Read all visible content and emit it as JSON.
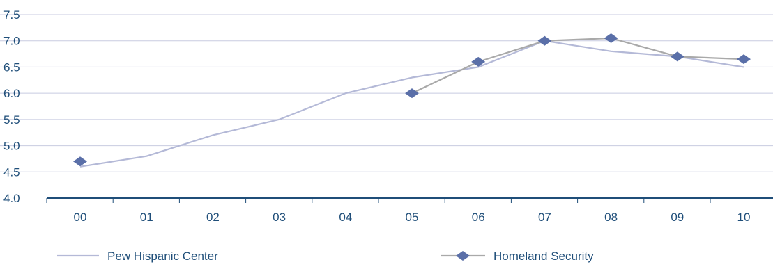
{
  "chart_data": {
    "type": "line",
    "categories": [
      "00",
      "01",
      "02",
      "03",
      "04",
      "05",
      "06",
      "07",
      "08",
      "09",
      "10"
    ],
    "series": [
      {
        "name": "Pew Hispanic Center",
        "values": [
          4.6,
          4.8,
          5.2,
          5.5,
          6.0,
          6.3,
          6.5,
          7.0,
          6.8,
          6.7,
          6.5
        ],
        "color": "#b4b9d7",
        "marker": "none"
      },
      {
        "name": "Homeland Security",
        "values": [
          4.7,
          null,
          null,
          null,
          null,
          6.0,
          6.6,
          7.0,
          7.05,
          6.7,
          6.65
        ],
        "color": "#a9a9a9",
        "marker_color": "#5a6fa8",
        "marker": "diamond"
      }
    ],
    "yticks": [
      "4.0",
      "4.5",
      "5.0",
      "5.5",
      "6.0",
      "6.5",
      "7.0",
      "7.5"
    ],
    "ylim": [
      4.0,
      7.5
    ],
    "grid": true,
    "legend_position": "bottom",
    "title": "",
    "xlabel": "",
    "ylabel": ""
  },
  "colors": {
    "axis": "#1f4e79",
    "grid": "#c8cbe0",
    "text": "#1f4e79"
  }
}
